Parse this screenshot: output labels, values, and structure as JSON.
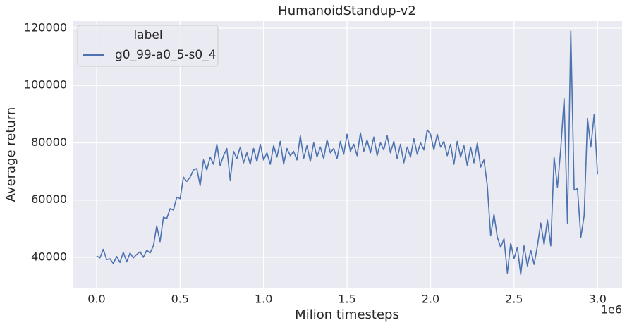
{
  "chart_data": {
    "type": "line",
    "title": "HumanoidStandup-v2",
    "xlabel": "Milion timesteps",
    "ylabel": "Average return",
    "x_offset_label": "1e6",
    "legend_title": "label",
    "legend_position": "upper left",
    "grid": true,
    "xlim": [
      -143600,
      3147000
    ],
    "ylim": [
      29400,
      122460
    ],
    "xticks": [
      {
        "value": 0,
        "label": "0.0"
      },
      {
        "value": 500000,
        "label": "0.5"
      },
      {
        "value": 1000000,
        "label": "1.0"
      },
      {
        "value": 1500000,
        "label": "1.5"
      },
      {
        "value": 2000000,
        "label": "2.0"
      },
      {
        "value": 2500000,
        "label": "2.5"
      },
      {
        "value": 3000000,
        "label": "3.0"
      }
    ],
    "yticks": [
      40000,
      60000,
      80000,
      100000,
      120000
    ],
    "x": [
      0,
      20000,
      40000,
      60000,
      80000,
      100000,
      120000,
      140000,
      160000,
      180000,
      200000,
      220000,
      240000,
      260000,
      280000,
      300000,
      320000,
      340000,
      360000,
      380000,
      400000,
      420000,
      440000,
      460000,
      480000,
      500000,
      520000,
      540000,
      560000,
      580000,
      600000,
      620000,
      640000,
      660000,
      680000,
      700000,
      720000,
      740000,
      760000,
      780000,
      800000,
      820000,
      840000,
      860000,
      880000,
      900000,
      920000,
      940000,
      960000,
      980000,
      1000000,
      1020000,
      1040000,
      1060000,
      1080000,
      1100000,
      1120000,
      1140000,
      1160000,
      1180000,
      1200000,
      1220000,
      1240000,
      1260000,
      1280000,
      1300000,
      1320000,
      1340000,
      1360000,
      1380000,
      1400000,
      1420000,
      1440000,
      1460000,
      1480000,
      1500000,
      1520000,
      1540000,
      1560000,
      1580000,
      1600000,
      1620000,
      1640000,
      1660000,
      1680000,
      1700000,
      1720000,
      1740000,
      1760000,
      1780000,
      1800000,
      1820000,
      1840000,
      1860000,
      1880000,
      1900000,
      1920000,
      1940000,
      1960000,
      1980000,
      2000000,
      2020000,
      2040000,
      2060000,
      2080000,
      2100000,
      2120000,
      2140000,
      2160000,
      2180000,
      2200000,
      2220000,
      2240000,
      2260000,
      2280000,
      2300000,
      2320000,
      2340000,
      2360000,
      2380000,
      2400000,
      2420000,
      2440000,
      2460000,
      2480000,
      2500000,
      2520000,
      2540000,
      2560000,
      2580000,
      2600000,
      2620000,
      2640000,
      2660000,
      2680000,
      2700000,
      2720000,
      2740000,
      2760000,
      2780000,
      2800000,
      2820000,
      2840000,
      2860000,
      2880000,
      2900000,
      2920000,
      2940000,
      2960000,
      2980000,
      3000000
    ],
    "series": [
      {
        "name": "g0_99-a0_5-s0_4",
        "color": "#4c72b0",
        "values": [
          40500,
          39800,
          42800,
          39200,
          39500,
          37800,
          40300,
          38200,
          41800,
          38400,
          41500,
          39800,
          41000,
          42000,
          40000,
          42500,
          41500,
          44000,
          51000,
          45500,
          54000,
          53500,
          57000,
          56500,
          61000,
          60500,
          68000,
          66500,
          68000,
          70500,
          71000,
          65000,
          74000,
          70500,
          75000,
          72500,
          79500,
          72000,
          75500,
          78000,
          67000,
          77000,
          74500,
          78500,
          73000,
          76500,
          72500,
          78000,
          73500,
          79500,
          74000,
          76500,
          72500,
          79000,
          75000,
          80500,
          72500,
          78000,
          75500,
          77000,
          74000,
          82500,
          74500,
          79000,
          73500,
          80000,
          75000,
          78500,
          74500,
          81000,
          76500,
          78000,
          74500,
          80500,
          76000,
          83000,
          77000,
          79500,
          75500,
          83500,
          77000,
          81000,
          76500,
          82000,
          75500,
          80000,
          77500,
          82500,
          76500,
          80500,
          74500,
          79500,
          73000,
          78500,
          75000,
          81500,
          76000,
          80000,
          77500,
          84500,
          83000,
          77500,
          83000,
          78500,
          80500,
          75500,
          79500,
          72500,
          80500,
          75000,
          79000,
          72000,
          78500,
          73000,
          80000,
          71500,
          74000,
          65000,
          47500,
          55000,
          47000,
          43500,
          46500,
          34500,
          45000,
          39500,
          43500,
          34000,
          44000,
          37000,
          42500,
          37500,
          44000,
          52000,
          44500,
          53000,
          44000,
          75000,
          64500,
          78000,
          95500,
          52000,
          119000,
          63500,
          64000,
          47000,
          54500,
          88500,
          78500,
          90000,
          69000
        ]
      }
    ]
  }
}
